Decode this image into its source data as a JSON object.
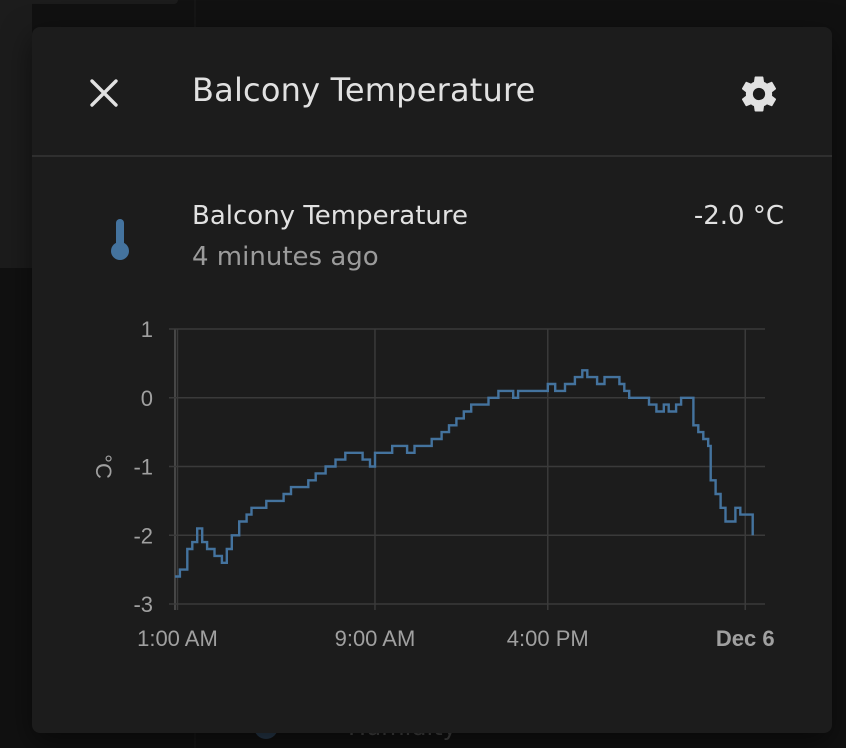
{
  "dialog": {
    "title": "Balcony Temperature",
    "close_icon": "close-icon",
    "settings_icon": "gear-icon"
  },
  "entity": {
    "name": "Balcony Temperature",
    "last_changed": "4 minutes ago",
    "state": "-2.0 °C",
    "icon": "thermometer-icon",
    "icon_color": "#44739e"
  },
  "background": {
    "partial_label": "Humidity"
  },
  "colors": {
    "accent": "#44739e",
    "dialog_bg": "#1c1c1c",
    "grid": "#3a3a3a"
  },
  "chart_data": {
    "type": "line",
    "step": true,
    "ylabel": "°C",
    "ylim": [
      -3,
      1
    ],
    "yticks": [
      1,
      0,
      -1,
      -2,
      -3
    ],
    "xticks": [
      {
        "label": "1:00 AM",
        "hour": 1,
        "bold": false
      },
      {
        "label": "9:00 AM",
        "hour": 9,
        "bold": false
      },
      {
        "label": "4:00 PM",
        "hour": 16,
        "bold": false
      },
      {
        "label": "Dec 6",
        "hour": 24,
        "bold": true
      }
    ],
    "xlim_hours": [
      0.9,
      24.8
    ],
    "grid": true,
    "series": [
      {
        "color": "#44739e",
        "points": [
          [
            0.9,
            -2.6
          ],
          [
            1.1,
            -2.5
          ],
          [
            1.4,
            -2.2
          ],
          [
            1.6,
            -2.1
          ],
          [
            1.8,
            -1.9
          ],
          [
            2.0,
            -2.1
          ],
          [
            2.2,
            -2.2
          ],
          [
            2.5,
            -2.3
          ],
          [
            2.8,
            -2.4
          ],
          [
            3.0,
            -2.2
          ],
          [
            3.2,
            -2.0
          ],
          [
            3.5,
            -1.8
          ],
          [
            3.8,
            -1.7
          ],
          [
            4.0,
            -1.6
          ],
          [
            4.3,
            -1.6
          ],
          [
            4.6,
            -1.5
          ],
          [
            5.0,
            -1.5
          ],
          [
            5.3,
            -1.4
          ],
          [
            5.6,
            -1.3
          ],
          [
            6.0,
            -1.3
          ],
          [
            6.3,
            -1.2
          ],
          [
            6.6,
            -1.1
          ],
          [
            7.0,
            -1.0
          ],
          [
            7.4,
            -0.9
          ],
          [
            7.8,
            -0.8
          ],
          [
            8.2,
            -0.8
          ],
          [
            8.5,
            -0.9
          ],
          [
            8.8,
            -1.0
          ],
          [
            9.0,
            -0.8
          ],
          [
            9.4,
            -0.8
          ],
          [
            9.7,
            -0.7
          ],
          [
            10.0,
            -0.7
          ],
          [
            10.3,
            -0.8
          ],
          [
            10.6,
            -0.7
          ],
          [
            11.0,
            -0.7
          ],
          [
            11.3,
            -0.6
          ],
          [
            11.7,
            -0.5
          ],
          [
            12.0,
            -0.4
          ],
          [
            12.3,
            -0.3
          ],
          [
            12.6,
            -0.2
          ],
          [
            12.9,
            -0.1
          ],
          [
            13.3,
            -0.1
          ],
          [
            13.6,
            0.0
          ],
          [
            14.0,
            0.1
          ],
          [
            14.3,
            0.1
          ],
          [
            14.6,
            0.0
          ],
          [
            14.8,
            0.1
          ],
          [
            15.3,
            0.1
          ],
          [
            16.0,
            0.2
          ],
          [
            16.3,
            0.1
          ],
          [
            16.7,
            0.2
          ],
          [
            17.1,
            0.3
          ],
          [
            17.4,
            0.4
          ],
          [
            17.6,
            0.3
          ],
          [
            18.0,
            0.2
          ],
          [
            18.3,
            0.3
          ],
          [
            18.7,
            0.3
          ],
          [
            18.9,
            0.2
          ],
          [
            19.1,
            0.1
          ],
          [
            19.3,
            0.0
          ],
          [
            19.6,
            0.0
          ],
          [
            19.9,
            0.0
          ],
          [
            20.1,
            -0.1
          ],
          [
            20.4,
            -0.2
          ],
          [
            20.7,
            -0.1
          ],
          [
            20.9,
            -0.2
          ],
          [
            21.2,
            -0.1
          ],
          [
            21.4,
            0.0
          ],
          [
            21.6,
            0.0
          ],
          [
            21.9,
            -0.4
          ],
          [
            22.1,
            -0.5
          ],
          [
            22.3,
            -0.6
          ],
          [
            22.5,
            -0.7
          ],
          [
            22.6,
            -1.2
          ],
          [
            22.8,
            -1.4
          ],
          [
            23.0,
            -1.6
          ],
          [
            23.2,
            -1.8
          ],
          [
            23.4,
            -1.8
          ],
          [
            23.6,
            -1.6
          ],
          [
            23.8,
            -1.7
          ],
          [
            24.1,
            -1.7
          ],
          [
            24.3,
            -2.0
          ]
        ]
      }
    ]
  }
}
